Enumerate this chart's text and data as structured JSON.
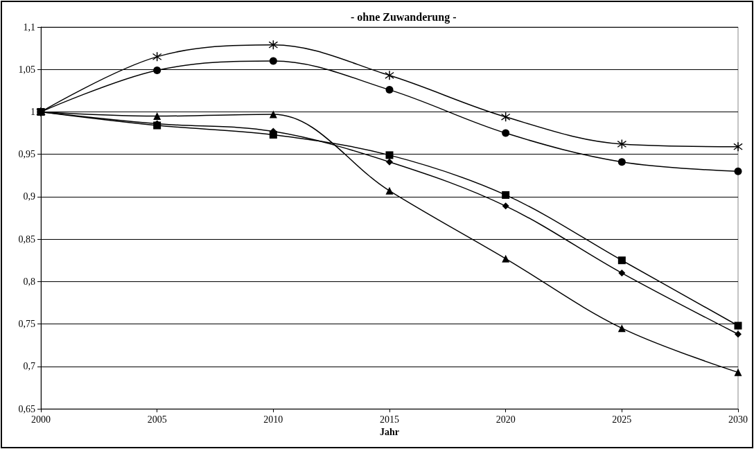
{
  "chart_data": {
    "type": "line",
    "title": "- ohne Zuwanderung -",
    "xlabel": "Jahr",
    "x": [
      2000,
      2005,
      2010,
      2015,
      2020,
      2025,
      2030
    ],
    "series": [
      {
        "color": "#000000",
        "marker": "circle",
        "values": [
          1.0,
          1.049,
          1.06,
          1.026,
          0.975,
          0.941,
          0.93
        ]
      },
      {
        "color": "#000000",
        "marker": "cross",
        "values": [
          1.0,
          1.065,
          1.079,
          1.043,
          0.994,
          0.962,
          0.959
        ]
      },
      {
        "color": "#000000",
        "marker": "triangle",
        "values": [
          1.0,
          0.995,
          0.997,
          0.907,
          0.827,
          0.745,
          0.693
        ]
      },
      {
        "color": "#000000",
        "marker": "square",
        "values": [
          1.0,
          0.984,
          0.973,
          0.949,
          0.902,
          0.825,
          0.748
        ]
      },
      {
        "color": "#000000",
        "marker": "diamond",
        "values": [
          1.0,
          0.986,
          0.977,
          0.941,
          0.889,
          0.81,
          0.738
        ]
      }
    ],
    "xlim": [
      2000,
      2030
    ],
    "xticks": [
      2000,
      2005,
      2010,
      2015,
      2020,
      2025,
      2030
    ],
    "ylim": [
      0.65,
      1.1
    ],
    "yticks": [
      {
        "value": 0.65,
        "label": "0,65"
      },
      {
        "value": 0.7,
        "label": "0,7"
      },
      {
        "value": 0.75,
        "label": "0,75"
      },
      {
        "value": 0.8,
        "label": "0,8"
      },
      {
        "value": 0.85,
        "label": "0,85"
      },
      {
        "value": 0.9,
        "label": "0,9"
      },
      {
        "value": 0.95,
        "label": "0,95"
      },
      {
        "value": 1,
        "label": "1"
      },
      {
        "value": 1.05,
        "label": "1,05"
      },
      {
        "value": 1.1,
        "label": "1,1"
      }
    ],
    "grid": "y",
    "line_style": "solid"
  }
}
